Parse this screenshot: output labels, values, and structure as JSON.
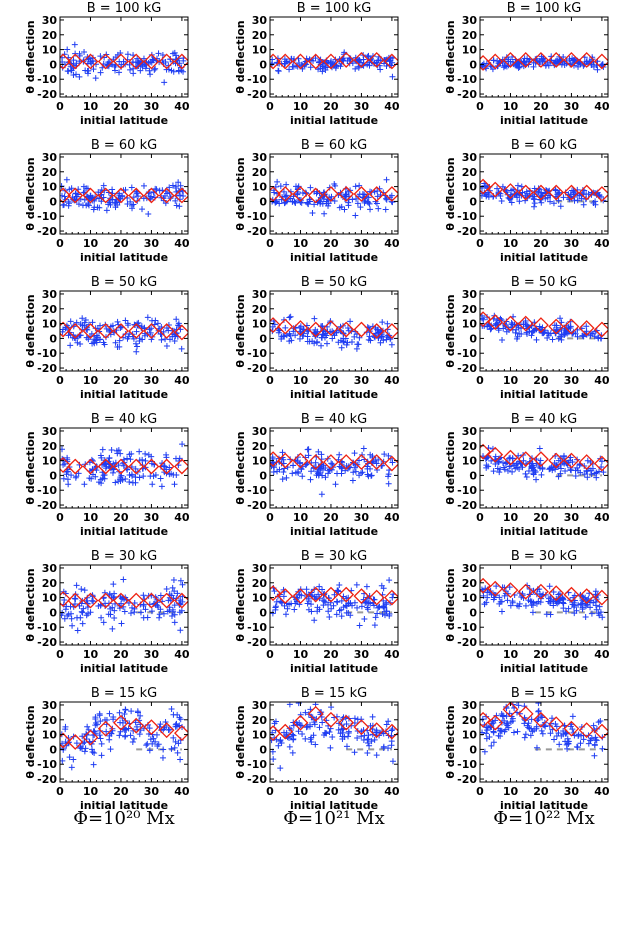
{
  "chart_data": {
    "type": "scatter",
    "layout": "6 rows x 3 columns of small-multiple scatter panels",
    "xlabel": "initial latitude",
    "ylabel": "θ deflection",
    "xlim": [
      0,
      42
    ],
    "ylim": [
      -22,
      32
    ],
    "xticks": [
      0,
      10,
      20,
      30,
      40
    ],
    "yticks": [
      -20,
      -10,
      0,
      10,
      20,
      30
    ],
    "grid": false,
    "column_labels": [
      "Φ=10²⁰ Mx",
      "Φ=10²¹ Mx",
      "Φ=10²² Mx"
    ],
    "row_titles": [
      "B =  100 kG",
      "B =  60 kG",
      "B =  50 kG",
      "B =  40 kG",
      "B =  30 kG",
      "B =  15 kG"
    ],
    "markers": {
      "scatter": {
        "shape": "plus",
        "color": "#1f3df2"
      },
      "mean": {
        "shape": "diamond",
        "color": "#ee2211"
      },
      "reference": {
        "shape": "dashed line",
        "color": "#999999"
      }
    },
    "diamond_x": [
      1,
      5,
      10,
      15,
      20,
      25,
      30,
      35,
      40
    ],
    "panels": [
      {
        "row": 0,
        "col": 0,
        "mean_y": [
          2,
          2,
          2,
          2,
          2,
          2,
          2,
          2,
          2
        ],
        "spread": 5,
        "bias": 1
      },
      {
        "row": 0,
        "col": 1,
        "mean_y": [
          2,
          2,
          2,
          2,
          2,
          3,
          3,
          3,
          2
        ],
        "spread": 3.5,
        "bias": 1
      },
      {
        "row": 0,
        "col": 2,
        "mean_y": [
          1,
          2,
          3,
          3,
          3,
          3,
          3,
          3,
          2
        ],
        "spread": 2.5,
        "bias": 1.5
      },
      {
        "row": 1,
        "col": 0,
        "mean_y": [
          4,
          4,
          4,
          4,
          4,
          4,
          4,
          4,
          4
        ],
        "spread": 6,
        "bias": 1
      },
      {
        "row": 1,
        "col": 1,
        "mean_y": [
          5,
          5,
          5,
          4,
          5,
          5,
          5,
          5,
          5
        ],
        "spread": 5,
        "bias": 2
      },
      {
        "row": 1,
        "col": 2,
        "mean_y": [
          10,
          8,
          7,
          6,
          6,
          6,
          6,
          6,
          5
        ],
        "spread": 3.5,
        "bias": 2
      },
      {
        "row": 2,
        "col": 0,
        "mean_y": [
          6,
          5,
          5,
          5,
          5,
          5,
          5,
          5,
          4
        ],
        "spread": 7,
        "bias": 1
      },
      {
        "row": 2,
        "col": 1,
        "mean_y": [
          9,
          8,
          7,
          6,
          7,
          6,
          6,
          5,
          5
        ],
        "spread": 6,
        "bias": 3
      },
      {
        "row": 2,
        "col": 2,
        "mean_y": [
          13,
          11,
          10,
          10,
          9,
          8,
          8,
          7,
          6
        ],
        "spread": 4,
        "bias": 3
      },
      {
        "row": 3,
        "col": 0,
        "mean_y": [
          7,
          6,
          6,
          6,
          6,
          6,
          6,
          6,
          6
        ],
        "spread": 8,
        "bias": 1
      },
      {
        "row": 3,
        "col": 1,
        "mean_y": [
          11,
          10,
          10,
          9,
          9,
          9,
          9,
          9,
          8
        ],
        "spread": 7,
        "bias": 3
      },
      {
        "row": 3,
        "col": 2,
        "mean_y": [
          16,
          14,
          12,
          11,
          11,
          10,
          10,
          9,
          8
        ],
        "spread": 5,
        "bias": 4
      },
      {
        "row": 4,
        "col": 0,
        "mean_y": [
          9,
          8,
          8,
          8,
          8,
          8,
          8,
          8,
          8
        ],
        "spread": 9,
        "bias": 2
      },
      {
        "row": 4,
        "col": 1,
        "mean_y": [
          13,
          11,
          11,
          12,
          12,
          12,
          11,
          10,
          10
        ],
        "spread": 8,
        "bias": 4
      },
      {
        "row": 4,
        "col": 2,
        "mean_y": [
          18,
          16,
          15,
          14,
          14,
          13,
          12,
          11,
          10
        ],
        "spread": 6,
        "bias": 5
      },
      {
        "row": 5,
        "col": 0,
        "mean_y": [
          6,
          5,
          8,
          14,
          18,
          16,
          15,
          13,
          11
        ],
        "spread": 10,
        "bias": 2
      },
      {
        "row": 5,
        "col": 1,
        "mean_y": [
          11,
          12,
          18,
          24,
          20,
          18,
          15,
          13,
          12
        ],
        "spread": 9,
        "bias": 4
      },
      {
        "row": 5,
        "col": 2,
        "mean_y": [
          20,
          18,
          27,
          24,
          20,
          17,
          14,
          13,
          12
        ],
        "spread": 8,
        "bias": 5
      }
    ]
  }
}
